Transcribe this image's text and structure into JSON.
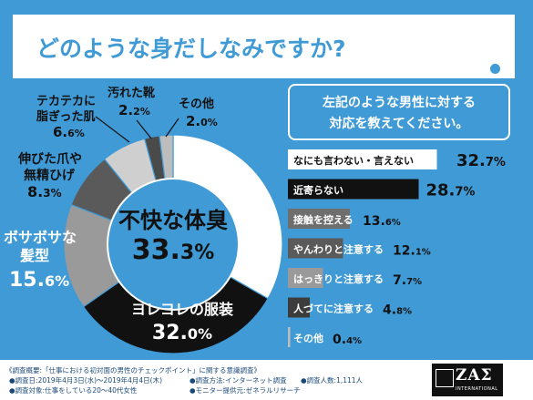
{
  "title": "どのような身だしなみですか?",
  "colors": {
    "background": "#3f9ad6",
    "panel": "#ffffff",
    "center": "#3f9ad6",
    "slice_unpleasant": "#ffffff",
    "slice_wrinkled": "#111111",
    "slice_hair": "#9a9a9a",
    "slice_nails": "#5a5a5a",
    "slice_skin": "#cfcfcf",
    "slice_shoes": "#4a4a4a",
    "slice_other": "#bdbdbd"
  },
  "chart_data": [
    {
      "type": "pie",
      "donut": true,
      "slices": [
        {
          "label": "不快な体臭",
          "value": 33.3
        },
        {
          "label": "ヨレヨレの服装",
          "value": 32.0
        },
        {
          "label": "ボサボサな髪型",
          "value": 15.6
        },
        {
          "label": "伸びた爪や無精ひげ",
          "value": 8.3
        },
        {
          "label": "テカテカに脂ぎった肌",
          "value": 6.6
        },
        {
          "label": "汚れた靴",
          "value": 2.2
        },
        {
          "label": "その他",
          "value": 2.0
        }
      ],
      "display": {
        "center": {
          "label": "不快な体臭",
          "num": "33.",
          "dec": "3%"
        },
        "wrinkled": {
          "label": "ヨレヨレの服装",
          "num": "32.",
          "dec": "0%"
        },
        "hair": {
          "line1": "ボサボサな",
          "line2": "髪型",
          "num": "15.",
          "dec": "6%"
        },
        "nails": {
          "line1": "伸びた爪や",
          "line2": "無精ひげ",
          "num": "8.",
          "dec": "3%"
        },
        "skin": {
          "line1": "テカテカに",
          "line2": "脂ぎった肌",
          "num": "6.",
          "dec": "6%"
        },
        "shoes": {
          "line1": "汚れた靴",
          "num": "2.",
          "dec": "2%"
        },
        "other": {
          "line1": "その他",
          "num": "2.",
          "dec": "0%"
        }
      }
    },
    {
      "type": "bar",
      "title_line1": "左記のような男性に対する",
      "title_line2": "対応を教えてください。",
      "categories": [
        "なにも言わない・言えない",
        "近寄らない",
        "接触を控える",
        "やんわりと注意する",
        "はっきりと注意する",
        "人づてに注意する",
        "その他"
      ],
      "values": [
        32.7,
        28.7,
        13.6,
        12.1,
        7.7,
        4.8,
        0.4
      ],
      "value_labels": [
        {
          "num": "32.",
          "dec": "7%"
        },
        {
          "num": "28.",
          "dec": "7%"
        },
        {
          "num": "13.",
          "dec": "6%"
        },
        {
          "num": "12.",
          "dec": "1%"
        },
        {
          "num": "7.",
          "dec": "7%"
        },
        {
          "num": "4.",
          "dec": "8%"
        },
        {
          "num": "0.",
          "dec": "4%"
        }
      ],
      "bar_colors": [
        "#ffffff",
        "#111111",
        "#6e6e6e",
        "#5a5a5a",
        "#9a9a9a",
        "#3c3c3c",
        "#bdbdbd"
      ],
      "xlim": [
        0,
        35
      ]
    }
  ],
  "footer": {
    "line1": "《調査概要:「仕事における初対面の男性のチェックポイント」に関する意識調査》",
    "line2a": "●調査日:2019年4月3日(水)〜2019年4月4日(木)",
    "line2b": "●調査方法:インターネット調査",
    "line2c": "●調査人数:1,111人",
    "line3a": "●調査対象:仕事をしている20〜40代女性",
    "line3b": "●モニター提供元:ゼネラルリサーチ",
    "logo_main": "ZAΣ",
    "logo_sub": "INTERNATIONAL"
  }
}
